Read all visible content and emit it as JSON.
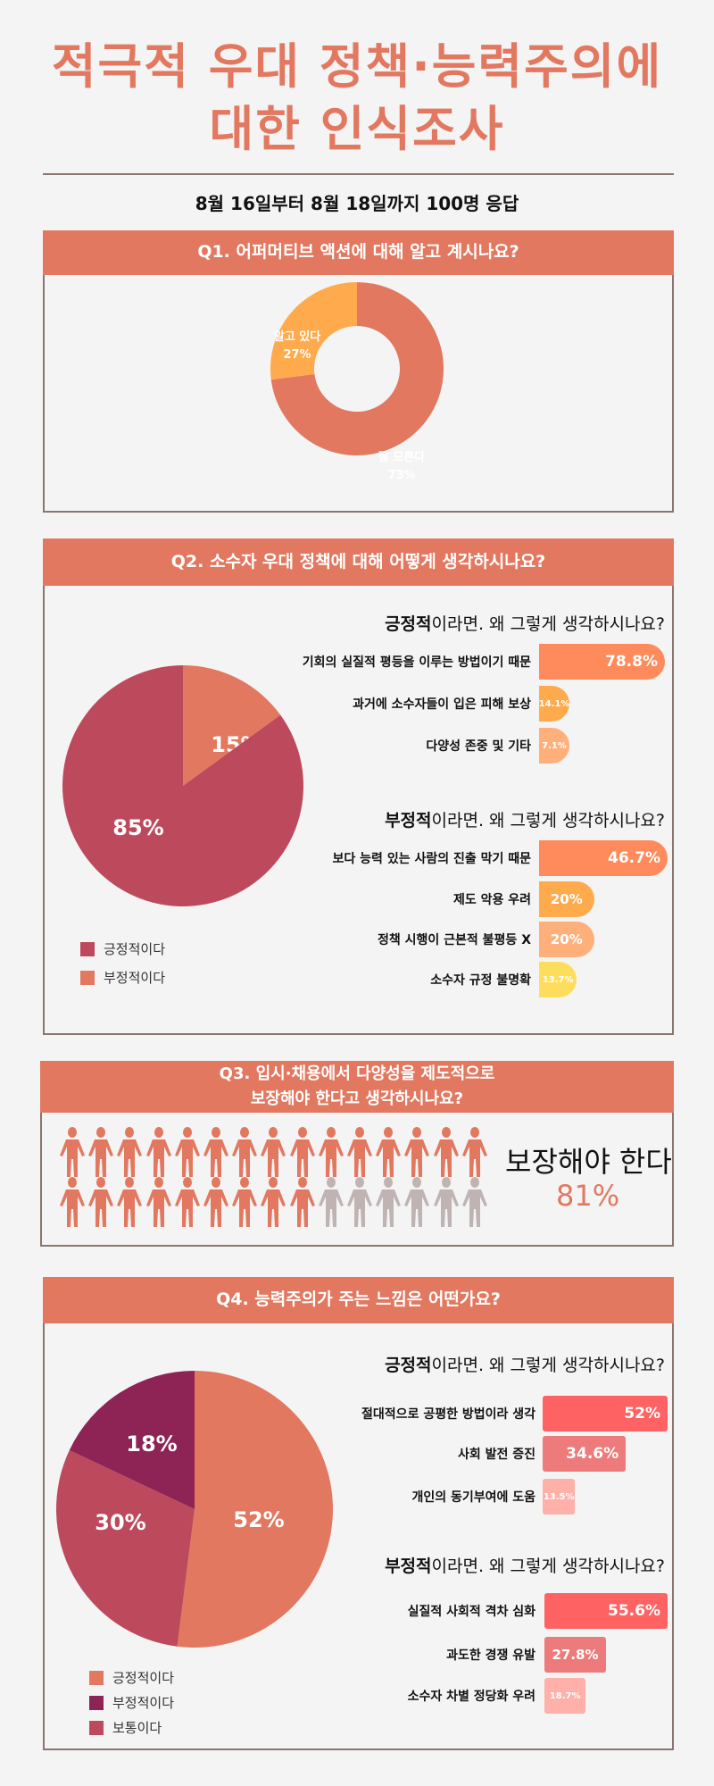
{
  "title": {
    "line1": "적극적 우대 정책·능력주의에",
    "line2": "대한 인식조사"
  },
  "subtitle": "8월 16일부터 8월 18일까지 100명 응답",
  "colors": {
    "accent": "#E27860",
    "orange": "#FFAA4C",
    "rose": "#BD4A5C",
    "purple": "#8E2356",
    "gray": "#C0B3B3",
    "border": "#8a7670"
  },
  "chart_data": [
    {
      "id": "q1",
      "type": "pie",
      "donut": true,
      "title": "Q1. 어퍼머티브 액션에 대해 알고 계시나요?",
      "slices": [
        {
          "label": "잘 모른다",
          "value": 73,
          "display": "73%",
          "color": "#E27860"
        },
        {
          "label": "알고 있다",
          "value": 27,
          "display": "27%",
          "color": "#FFAA4C"
        }
      ]
    },
    {
      "id": "q2",
      "type": "pie",
      "title": "Q2. 소수자 우대 정책에 대해 어떻게 생각하시나요?",
      "slices": [
        {
          "label": "부정적이다",
          "value": 15,
          "display": "15%",
          "color": "#E27860"
        },
        {
          "label": "긍정적이다",
          "value": 85,
          "display": "85%",
          "color": "#BD4A5C"
        }
      ],
      "legend": [
        {
          "label": "긍정적이다",
          "color": "#BD4A5C"
        },
        {
          "label": "부정적이다",
          "color": "#E27860"
        }
      ]
    },
    {
      "id": "q2-positive",
      "type": "bar",
      "orientation": "horizontal",
      "title_strong": "긍정적",
      "title_rest": "이라면. 왜 그렇게 생각하시나요?",
      "categories": [
        "기회의 실질적 평등을 이루는 방법이기 때문",
        "과거에 소수자들이 입은 피해 보상",
        "다양성 존중 및 기타"
      ],
      "values": [
        78.8,
        14.1,
        7.1
      ],
      "labels": [
        "78.8%",
        "14.1%",
        "7.1%"
      ],
      "colors": [
        "#FF8A5C",
        "#FFAA4C",
        "#FFB07A"
      ]
    },
    {
      "id": "q2-negative",
      "type": "bar",
      "orientation": "horizontal",
      "title_strong": "부정적",
      "title_rest": "이라면. 왜 그렇게 생각하시나요?",
      "categories": [
        "보다 능력 있는 사람의 진출 막기 때문",
        "제도 악용 우려",
        "정책 시행이 근본적 불평등 X",
        "소수자 규정 불명확"
      ],
      "values": [
        46.7,
        20,
        20,
        13.7
      ],
      "labels": [
        "46.7%",
        "20%",
        "20%",
        "13.7%"
      ],
      "colors": [
        "#FF8A5C",
        "#FFAA4C",
        "#FFB07A",
        "#FFDD5C"
      ]
    },
    {
      "id": "q3",
      "type": "pictogram",
      "title_line1": "Q3. 입시·채용에서 다양성을 제도적으로",
      "title_line2": "보장해야 한다고 생각하시나요?",
      "total_icons": 30,
      "filled_icons": 24,
      "label": "보장해야 한다",
      "value": 81,
      "display": "81%",
      "colors": {
        "filled": "#E27860",
        "empty": "#C0B3B3"
      }
    },
    {
      "id": "q4",
      "type": "pie",
      "title": "Q4. 능력주의가 주는 느낌은 어떤가요?",
      "slices": [
        {
          "label": "긍정적이다",
          "value": 52,
          "display": "52%",
          "color": "#E27860"
        },
        {
          "label": "보통이다",
          "value": 30,
          "display": "30%",
          "color": "#BD4A5C"
        },
        {
          "label": "부정적이다",
          "value": 18,
          "display": "18%",
          "color": "#8E2356"
        }
      ],
      "legend": [
        {
          "label": "긍정적이다",
          "color": "#E27860"
        },
        {
          "label": "부정적이다",
          "color": "#8E2356"
        },
        {
          "label": "보통이다",
          "color": "#BD4A5C"
        }
      ]
    },
    {
      "id": "q4-positive",
      "type": "bar",
      "orientation": "horizontal",
      "title_strong": "긍정적",
      "title_rest": "이라면. 왜 그렇게 생각하시나요?",
      "categories": [
        "절대적으로 공평한 방법이라 생각",
        "사회 발전 증진",
        "개인의 동기부여에 도움"
      ],
      "values": [
        52,
        34.6,
        13.5
      ],
      "labels": [
        "52%",
        "34.6%",
        "13.5%"
      ],
      "colors": [
        "#FF6262",
        "#EE7B7B",
        "#FFB0A8"
      ]
    },
    {
      "id": "q4-negative",
      "type": "bar",
      "orientation": "horizontal",
      "title_strong": "부정적",
      "title_rest": "이라면. 왜 그렇게 생각하시나요?",
      "categories": [
        "실질적 사회적 격차 심화",
        "과도한 경쟁 유발",
        "소수자 차별 정당화 우려"
      ],
      "values": [
        55.6,
        27.8,
        18.7
      ],
      "labels": [
        "55.6%",
        "27.8%",
        "18.7%"
      ],
      "colors": [
        "#FF6262",
        "#EE7B7B",
        "#FFB0A8"
      ]
    }
  ]
}
